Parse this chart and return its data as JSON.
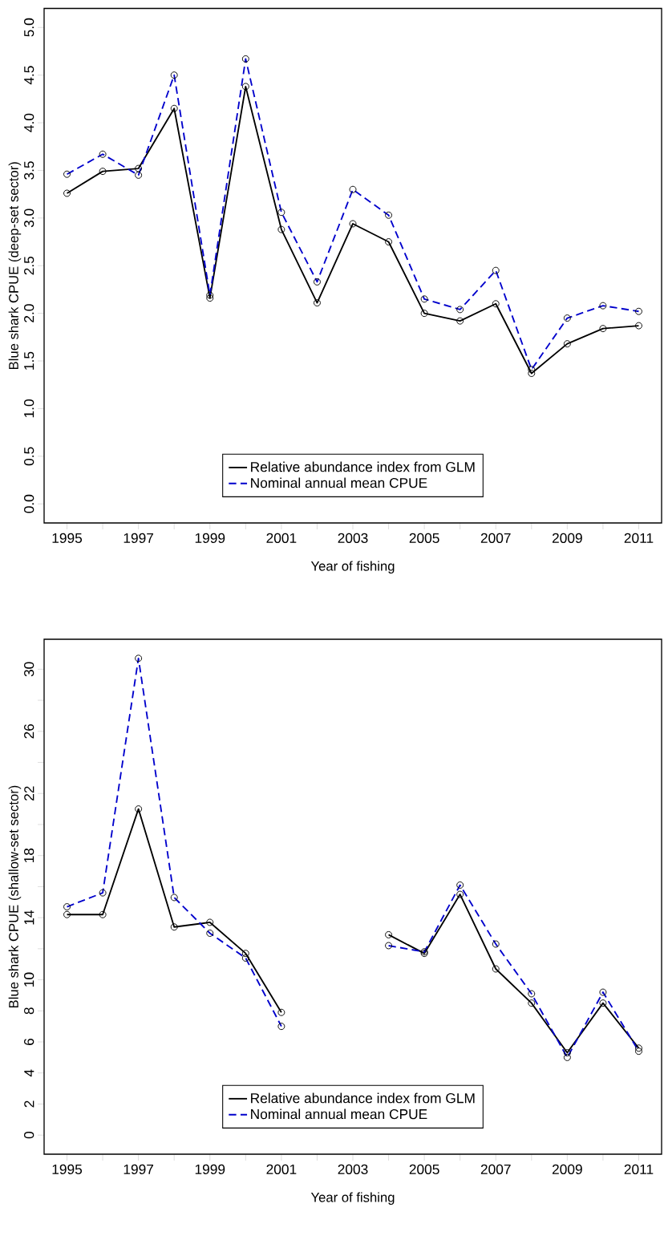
{
  "chart_data": [
    {
      "type": "line",
      "xlabel": "Year of fishing",
      "ylabel": "Blue shark CPUE (deep-set sector)",
      "marker": "circle",
      "legend": "bottom",
      "x": [
        1995,
        1996,
        1997,
        1998,
        1999,
        2000,
        2001,
        2002,
        2003,
        2004,
        2005,
        2006,
        2007,
        2008,
        2009,
        2010,
        2011
      ],
      "series": [
        {
          "name": "Relative abundance index from GLM",
          "color": "#000000",
          "line_style": "solid",
          "values": [
            3.26,
            3.49,
            3.52,
            4.15,
            2.16,
            4.38,
            2.88,
            2.11,
            2.94,
            2.75,
            2.0,
            1.92,
            2.1,
            1.37,
            1.68,
            1.84,
            1.87
          ]
        },
        {
          "name": "Nominal annual mean CPUE",
          "color": "#0000cc",
          "line_style": "dashed",
          "values": [
            3.46,
            3.67,
            3.45,
            4.5,
            2.19,
            4.67,
            3.06,
            2.33,
            3.3,
            3.03,
            2.15,
            2.04,
            2.45,
            1.41,
            1.95,
            2.08,
            2.02
          ]
        }
      ],
      "xlim": [
        1994.36,
        2011.64
      ],
      "ylim": [
        -0.2,
        5.2
      ],
      "xticks": [
        1995,
        {
          "value": 1996,
          "label": null
        },
        1997,
        {
          "value": 1998,
          "label": null
        },
        1999,
        {
          "value": 2000,
          "label": null
        },
        2001,
        {
          "value": 2002,
          "label": null
        },
        2003,
        {
          "value": 2004,
          "label": null
        },
        2005,
        {
          "value": 2006,
          "label": null
        },
        2007,
        {
          "value": 2008,
          "label": null
        },
        2009,
        {
          "value": 2010,
          "label": null
        },
        2011
      ],
      "yticks": [
        {
          "value": 0,
          "label": "0.0"
        },
        0.5,
        {
          "value": 1,
          "label": "1.0"
        },
        1.5,
        {
          "value": 2,
          "label": "2.0"
        },
        2.5,
        {
          "value": 3,
          "label": "3.0"
        },
        3.5,
        {
          "value": 4,
          "label": "4.0"
        },
        4.5,
        {
          "value": 5,
          "label": "5.0"
        }
      ]
    },
    {
      "type": "line",
      "xlabel": "Year of fishing",
      "ylabel": "Blue shark CPUE (shallow-set sector)",
      "marker": "circle",
      "legend": "bottom",
      "x": [
        1995,
        1996,
        1997,
        1998,
        1999,
        2000,
        2001,
        2002,
        2003,
        2004,
        2005,
        2006,
        2007,
        2008,
        2009,
        2010,
        2011
      ],
      "series": [
        {
          "name": "Relative abundance index from GLM",
          "color": "#000000",
          "line_style": "solid",
          "values": [
            14.2,
            14.2,
            21.0,
            13.4,
            13.7,
            11.7,
            7.9,
            null,
            null,
            12.9,
            11.7,
            15.5,
            10.7,
            8.5,
            5.3,
            8.5,
            5.6
          ]
        },
        {
          "name": "Nominal annual mean CPUE",
          "color": "#0000cc",
          "line_style": "dashed",
          "values": [
            14.7,
            15.6,
            30.7,
            15.3,
            13.0,
            11.4,
            7.0,
            null,
            null,
            12.2,
            11.8,
            16.1,
            12.3,
            9.1,
            5.0,
            9.2,
            5.4
          ]
        }
      ],
      "xlim": [
        1994.36,
        2011.64
      ],
      "ylim": [
        -1.23,
        31.93
      ],
      "xticks": [
        1995,
        {
          "value": 1996,
          "label": null
        },
        1997,
        {
          "value": 1998,
          "label": null
        },
        1999,
        {
          "value": 2000,
          "label": null
        },
        2001,
        {
          "value": 2002,
          "label": null
        },
        2003,
        {
          "value": 2004,
          "label": null
        },
        2005,
        {
          "value": 2006,
          "label": null
        },
        2007,
        {
          "value": 2008,
          "label": null
        },
        2009,
        {
          "value": 2010,
          "label": null
        },
        2011
      ],
      "yticks": [
        0,
        2,
        4,
        6,
        8,
        10,
        {
          "value": 12,
          "label": null
        },
        14,
        {
          "value": 16,
          "label": null
        },
        18,
        {
          "value": 20,
          "label": null
        },
        22,
        {
          "value": 24,
          "label": null
        },
        26,
        {
          "value": 28,
          "label": null
        },
        30
      ]
    }
  ]
}
